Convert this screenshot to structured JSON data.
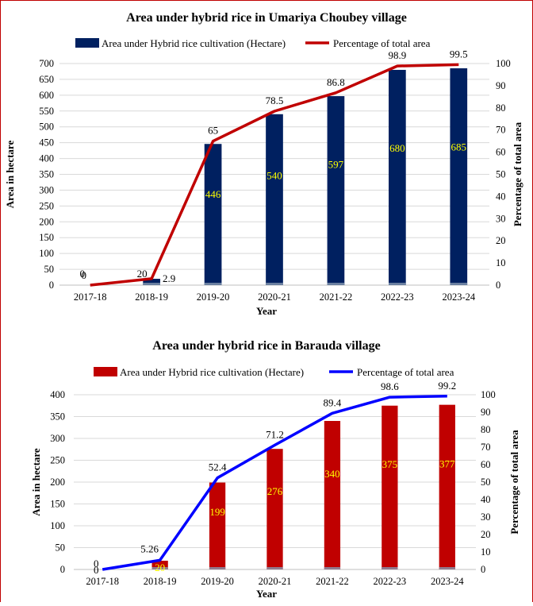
{
  "chart_data": [
    {
      "type": "bar+line",
      "title": "Area under hybrid rice in Umariya Choubey village",
      "xlabel": "Year",
      "ylabel": "Area in hectare",
      "y2label": "Percentage of total area",
      "categories": [
        "2017-18",
        "2018-19",
        "2019-20",
        "2020-21",
        "2021-22",
        "2022-23",
        "2023-24"
      ],
      "ylim": [
        0,
        700
      ],
      "yticks": [
        0,
        50,
        100,
        150,
        200,
        250,
        300,
        350,
        400,
        450,
        500,
        550,
        600,
        650,
        700
      ],
      "y2lim": [
        0,
        100
      ],
      "y2ticks": [
        0,
        10,
        20,
        30,
        40,
        50,
        60,
        70,
        80,
        90,
        100
      ],
      "grid": true,
      "legend_position": "top",
      "series": [
        {
          "name": "Area under Hybrid rice cultivation (Hectare)",
          "kind": "bar",
          "axis": "left",
          "color": "#002060",
          "label_color": "#ffff00",
          "values": [
            0,
            20,
            446,
            540,
            597,
            680,
            685
          ],
          "labels": [
            "0",
            "20",
            "446",
            "540",
            "597",
            "680",
            "685"
          ]
        },
        {
          "name": "Percentage of total area",
          "kind": "line",
          "axis": "right",
          "color": "#c00000",
          "values": [
            0,
            2.9,
            65,
            78.5,
            86.8,
            98.9,
            99.5
          ],
          "labels": [
            "0",
            "2.9",
            "65",
            "78.5",
            "86.8",
            "98.9",
            "99.5"
          ]
        }
      ]
    },
    {
      "type": "bar+line",
      "title": "Area under hybrid rice in Barauda village",
      "xlabel": "Year",
      "ylabel": "Area in hectare",
      "y2label": "Percentage of total area",
      "categories": [
        "2017-18",
        "2018-19",
        "2019-20",
        "2020-21",
        "2021-22",
        "2022-23",
        "2023-24"
      ],
      "ylim": [
        0,
        400
      ],
      "yticks": [
        0,
        50,
        100,
        150,
        200,
        250,
        300,
        350,
        400
      ],
      "y2lim": [
        0,
        100
      ],
      "y2ticks": [
        0,
        10,
        20,
        30,
        40,
        50,
        60,
        70,
        80,
        90,
        100
      ],
      "grid": true,
      "legend_position": "top",
      "series": [
        {
          "name": "Area under Hybrid rice cultivation (Hectare)",
          "kind": "bar",
          "axis": "left",
          "color": "#c00000",
          "label_color": "#ffff00",
          "values": [
            0,
            20,
            199,
            276,
            340,
            375,
            377
          ],
          "labels": [
            "0",
            "20",
            "199",
            "276",
            "340",
            "375",
            "377"
          ]
        },
        {
          "name": "Percentage of total area",
          "kind": "line",
          "axis": "right",
          "color": "#0000ff",
          "values": [
            0,
            5.26,
            52.4,
            71.2,
            89.4,
            98.6,
            99.2
          ],
          "labels": [
            "0",
            "5.26",
            "52.4",
            "71.2",
            "89.4",
            "98.6",
            "99.2"
          ]
        }
      ]
    }
  ]
}
